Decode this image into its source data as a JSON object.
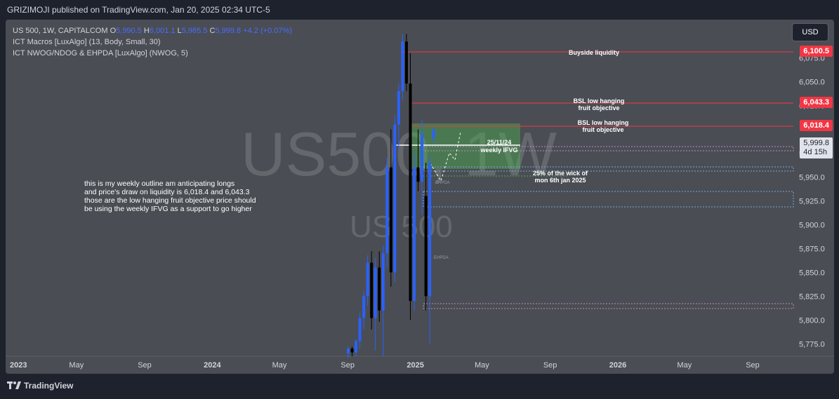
{
  "header": {
    "publisher_text": "GRIZIMOJI published on TradingView.com, Jan 20, 2025 02:34 UTC-5"
  },
  "legend": {
    "symbol": "US 500, 1W, CAPITALCOM",
    "o_label": "O",
    "o_value": "5,990.5",
    "h_label": "H",
    "h_value": "6,001.1",
    "l_label": "L",
    "l_value": "5,985.5",
    "c_label": "C",
    "c_value": "5,999.8",
    "change": "+4.2 (+0.07%)",
    "indicator1": "ICT Macros [LuxAlgo] (13, Body, Small, 30)",
    "indicator2": "ICT NWOG/NDOG & EHPDA [LuxAlgo] (NWOG, 5)"
  },
  "currency_button": "USD",
  "watermark": {
    "big": "US500, 1W",
    "small": "US 500"
  },
  "price_tags": {
    "buyside": "6,100.5",
    "bsl1": "6,043.3",
    "bsl2": "6,018.4",
    "current": "5,999.8",
    "countdown": "4d 15h"
  },
  "annotations": {
    "buyside_liquidity": "Buyside liquidity",
    "bsl1_line1": "BSL low hanging",
    "bsl1_line2": "fruit objective",
    "bsl2_line1": "BSL low hanging",
    "bsl2_line2": "fruit objective",
    "ifvg_line1": "25/11/24",
    "ifvg_line2": "weekly IFVG",
    "wick_line1": "25% of the wick of",
    "wick_line2": "mon 6th jan 2025",
    "ehpda1": "EHPDA",
    "ehpda2": "EHPDA"
  },
  "notes": [
    "this is my weekly outline am anticipating longs",
    "and price's draw on liquidity is 6,018.4 and 6,043.3",
    "those are the low hanging fruit objective price should",
    "be using the weekly IFVG as a support to go higher"
  ],
  "footer": {
    "brand": "TradingView"
  },
  "colors": {
    "up": "#2962ff",
    "down": "#000000",
    "liquidity": "#f23645",
    "ifvg": "#4caf50",
    "background": "#4a4d53"
  },
  "chart_data": {
    "type": "candlestick",
    "title": "US 500, 1W, CAPITALCOM",
    "ylim": [
      5762,
      6115
    ],
    "y_ticks": [
      "6,075.0",
      "6,050.0",
      "6,025.0",
      "5,975.0",
      "5,950.0",
      "5,925.0",
      "5,900.0",
      "5,875.0",
      "5,850.0",
      "5,825.0",
      "5,800.0",
      "5,775.0"
    ],
    "x_ticks": [
      "2023",
      "May",
      "Sep",
      "2024",
      "May",
      "Sep",
      "2025",
      "May",
      "Sep",
      "2026",
      "May",
      "Sep"
    ],
    "candles": [
      {
        "x": "2024-09-02",
        "o": 5765,
        "h": 5772,
        "l": 5760,
        "c": 5770
      },
      {
        "x": "2024-09-09",
        "o": 5770,
        "h": 5772,
        "l": 5762,
        "c": 5766
      },
      {
        "x": "2024-09-16",
        "o": 5766,
        "h": 5780,
        "l": 5762,
        "c": 5778
      },
      {
        "x": "2024-09-23",
        "o": 5778,
        "h": 5808,
        "l": 5770,
        "c": 5802
      },
      {
        "x": "2024-09-30",
        "o": 5802,
        "h": 5830,
        "l": 5790,
        "c": 5825
      },
      {
        "x": "2024-10-07",
        "o": 5825,
        "h": 5868,
        "l": 5815,
        "c": 5860
      },
      {
        "x": "2024-10-14",
        "o": 5860,
        "h": 5872,
        "l": 5790,
        "c": 5802
      },
      {
        "x": "2024-10-21",
        "o": 5802,
        "h": 5865,
        "l": 5768,
        "c": 5855
      },
      {
        "x": "2024-10-28",
        "o": 5855,
        "h": 5872,
        "l": 5798,
        "c": 5810
      },
      {
        "x": "2024-11-04",
        "o": 5810,
        "h": 5878,
        "l": 5762,
        "c": 5870
      },
      {
        "x": "2024-11-11",
        "o": 5870,
        "h": 5970,
        "l": 5855,
        "c": 5960
      },
      {
        "x": "2024-11-18",
        "o": 5960,
        "h": 6000,
        "l": 5835,
        "c": 5850
      },
      {
        "x": "2024-11-25",
        "o": 5850,
        "h": 6015,
        "l": 5840,
        "c": 6005
      },
      {
        "x": "2024-12-02",
        "o": 6005,
        "h": 6048,
        "l": 5980,
        "c": 6040
      },
      {
        "x": "2024-12-09",
        "o": 6040,
        "h": 6100,
        "l": 6030,
        "c": 6092
      },
      {
        "x": "2024-12-16",
        "o": 6092,
        "h": 6100,
        "l": 6040,
        "c": 6048
      },
      {
        "x": "2024-12-23",
        "o": 6048,
        "h": 6080,
        "l": 5800,
        "c": 5820
      },
      {
        "x": "2024-12-30",
        "o": 5820,
        "h": 5975,
        "l": 5810,
        "c": 5960
      },
      {
        "x": "2025-01-06",
        "o": 5960,
        "h": 6000,
        "l": 5935,
        "c": 5945
      },
      {
        "x": "2025-01-13",
        "o": 5945,
        "h": 6010,
        "l": 5910,
        "c": 5995
      },
      {
        "x": "2025-01-20",
        "o": 5930,
        "h": 5965,
        "l": 5810,
        "c": 5825
      },
      {
        "x": "2025-01-27",
        "o": 5825,
        "h": 5972,
        "l": 5775,
        "c": 5965
      },
      {
        "x": "2025-02-03",
        "o": 5990.5,
        "h": 6001.1,
        "l": 5985.5,
        "c": 5999.8
      }
    ],
    "levels": [
      {
        "name": "Buyside liquidity",
        "value": 6100.5
      },
      {
        "name": "BSL low hanging fruit objective",
        "value": 6043.3
      },
      {
        "name": "BSL low hanging fruit objective",
        "value": 6018.4
      },
      {
        "name": "weekly IFVG top",
        "value": 6018
      },
      {
        "name": "weekly IFVG bottom",
        "value": 5970
      },
      {
        "name": "25% of the wick of mon 6th jan 2025",
        "value": 5961
      }
    ]
  }
}
